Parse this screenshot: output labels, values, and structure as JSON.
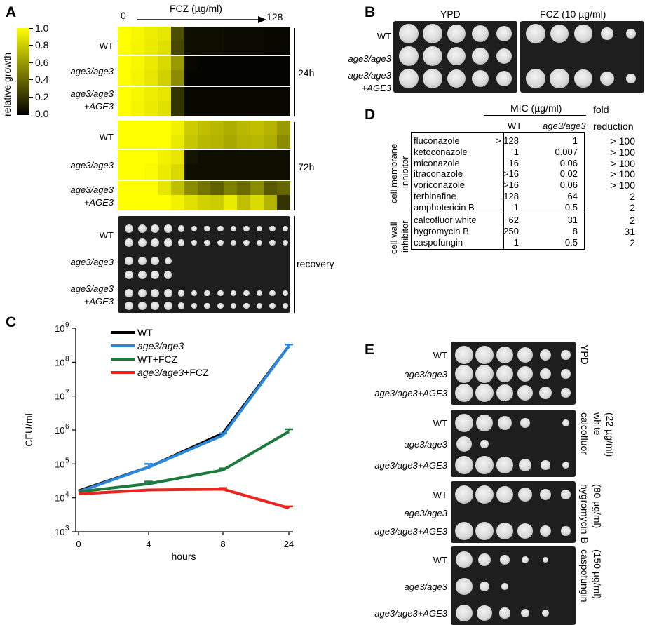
{
  "panels": {
    "A": "A",
    "B": "B",
    "C": "C",
    "D": "D",
    "E": "E"
  },
  "panelA": {
    "colorbar_label": "relative growth",
    "colorbar_ticks": [
      "1.0",
      "0.8",
      "0.6",
      "0.4",
      "0.2",
      "0.0"
    ],
    "fcz_label": "FCZ (µg/ml)",
    "fcz_min": "0",
    "fcz_max": "128",
    "time_24": "24h",
    "time_72": "72h",
    "recovery": "recovery",
    "strains": {
      "wt": "WT",
      "mut": "age3/age3",
      "comp1": "age3/age3",
      "comp2": "+AGE3"
    },
    "heatmap_24h": [
      [
        1.0,
        0.97,
        0.93,
        0.9,
        0.3,
        0.06,
        0.05,
        0.05,
        0.04,
        0.04,
        0.04,
        0.03,
        0.03
      ],
      [
        1.0,
        0.96,
        0.92,
        0.88,
        0.28,
        0.06,
        0.05,
        0.05,
        0.04,
        0.04,
        0.04,
        0.03,
        0.03
      ],
      [
        1.0,
        0.97,
        0.92,
        0.85,
        0.6,
        0.03,
        0.02,
        0.02,
        0.02,
        0.02,
        0.02,
        0.02,
        0.02
      ],
      [
        1.0,
        0.96,
        0.9,
        0.82,
        0.55,
        0.02,
        0.02,
        0.02,
        0.02,
        0.02,
        0.02,
        0.02,
        0.02
      ],
      [
        1.0,
        0.97,
        0.93,
        0.9,
        0.2,
        0.03,
        0.03,
        0.03,
        0.03,
        0.03,
        0.03,
        0.03,
        0.03
      ],
      [
        1.0,
        0.96,
        0.92,
        0.88,
        0.2,
        0.03,
        0.03,
        0.03,
        0.03,
        0.03,
        0.03,
        0.03,
        0.03
      ]
    ],
    "heatmap_72h": [
      [
        1.0,
        1.0,
        1.0,
        1.0,
        0.95,
        0.8,
        0.75,
        0.72,
        0.68,
        0.72,
        0.75,
        0.7,
        0.6
      ],
      [
        1.0,
        1.0,
        1.0,
        1.0,
        0.92,
        0.78,
        0.72,
        0.7,
        0.66,
        0.7,
        0.72,
        0.68,
        0.55
      ],
      [
        1.0,
        1.0,
        1.0,
        0.95,
        0.9,
        0.08,
        0.05,
        0.05,
        0.05,
        0.05,
        0.05,
        0.05,
        0.05
      ],
      [
        1.0,
        1.0,
        0.98,
        0.92,
        0.85,
        0.06,
        0.05,
        0.05,
        0.05,
        0.05,
        0.05,
        0.05,
        0.05
      ],
      [
        1.0,
        1.0,
        1.0,
        0.9,
        0.75,
        0.55,
        0.45,
        0.38,
        0.5,
        0.42,
        0.55,
        0.35,
        0.4
      ],
      [
        1.0,
        1.0,
        1.0,
        1.0,
        0.95,
        0.88,
        0.82,
        0.8,
        0.92,
        0.75,
        0.86,
        0.7,
        0.2
      ]
    ],
    "recovery_rows": [
      [
        1,
        1,
        1,
        1,
        0.6,
        0.55,
        0.55,
        0.55,
        0.5,
        0.5,
        0.5,
        0.5,
        0.45
      ],
      [
        1,
        1,
        1,
        1,
        0.6,
        0.55,
        0.55,
        0.55,
        0.5,
        0.5,
        0.5,
        0.5,
        0.45
      ],
      [
        1,
        1,
        1,
        0.8,
        0,
        0,
        0,
        0,
        0,
        0,
        0,
        0,
        0
      ],
      [
        1,
        1,
        1,
        0.9,
        0,
        0,
        0,
        0,
        0,
        0,
        0,
        0,
        0
      ],
      [
        1,
        1,
        1,
        1,
        0.6,
        0.55,
        0.55,
        0.55,
        0.5,
        0.5,
        0.5,
        0.5,
        0.45
      ],
      [
        1,
        1,
        1,
        1,
        0.6,
        0.55,
        0.55,
        0.55,
        0.5,
        0.5,
        0.5,
        0.5,
        0.45
      ]
    ]
  },
  "panelB": {
    "header_ypd": "YPD",
    "header_fcz": "FCZ (10 µg/ml)",
    "strains": {
      "wt": "WT",
      "mut": "age3/age3",
      "comp1": "age3/age3",
      "comp2": "+AGE3"
    },
    "ypd_rows": [
      [
        1,
        1,
        0.9,
        0.8,
        0.7
      ],
      [
        1,
        1,
        0.9,
        0.8,
        0.7
      ],
      [
        1,
        1,
        0.9,
        0.8,
        0.7
      ]
    ],
    "fcz_rows": [
      [
        1,
        0.9,
        0.85,
        0.5,
        0.2
      ],
      [
        0,
        0,
        0,
        0,
        0
      ],
      [
        1,
        0.95,
        0.85,
        0.6,
        0.25
      ]
    ]
  },
  "panelC": {
    "chart_data": {
      "type": "line",
      "xlabel": "hours",
      "ylabel": "CFU/ml",
      "x": [
        0,
        4,
        8,
        24
      ],
      "x_ticks": [
        "0",
        "4",
        "8",
        "24"
      ],
      "y_scale": "log",
      "ylim": [
        1000,
        1000000000
      ],
      "y_ticks": [
        {
          "base": "10",
          "exp": "3"
        },
        {
          "base": "10",
          "exp": "4"
        },
        {
          "base": "10",
          "exp": "5"
        },
        {
          "base": "10",
          "exp": "6"
        },
        {
          "base": "10",
          "exp": "7"
        },
        {
          "base": "10",
          "exp": "8"
        },
        {
          "base": "10",
          "exp": "9"
        }
      ],
      "legend_position": "top-left",
      "series": [
        {
          "name": "WT",
          "name_parts": [
            {
              "t": "WT",
              "i": false
            }
          ],
          "color": "#000000",
          "values": [
            16000,
            80000,
            800000,
            300000000
          ],
          "err": [
            0,
            0,
            0,
            0
          ]
        },
        {
          "name": "age3/age3",
          "name_parts": [
            {
              "t": "age3/age3",
              "i": true
            }
          ],
          "color": "#2b87d9",
          "values": [
            15000,
            80000,
            700000,
            300000000
          ],
          "err": [
            0,
            20000,
            100000,
            30000000
          ]
        },
        {
          "name": "WT+FCZ",
          "name_parts": [
            {
              "t": "WT+FCZ",
              "i": false
            }
          ],
          "color": "#1b7a3c",
          "values": [
            15000,
            26000,
            66000,
            900000
          ],
          "err": [
            0,
            4000,
            8000,
            150000
          ]
        },
        {
          "name": "age3/age3+FCZ",
          "name_parts": [
            {
              "t": "age3/age3",
              "i": true
            },
            {
              "t": "+FCZ",
              "i": false
            }
          ],
          "color": "#e8261f",
          "values": [
            13000,
            17000,
            18000,
            5000
          ],
          "err": [
            0,
            0,
            1500,
            600
          ]
        }
      ]
    }
  },
  "panelD": {
    "mic_header": "MIC (µg/ml)",
    "col_wt": "WT",
    "col_mut": "age3/age3",
    "fold_line1": "fold",
    "fold_line2": "reduction",
    "group1_line1": "cell membrane",
    "group1_line2": "inhibitor",
    "group2_line1": "cell wall",
    "group2_line2": "inhibitor",
    "membrane_rows": [
      {
        "drug": "fluconazole",
        "wt": "> 128",
        "mut": "1",
        "fold": "> 100"
      },
      {
        "drug": "ketoconazole",
        "wt": "1",
        "mut": "0.007",
        "fold": "> 100"
      },
      {
        "drug": "miconazole",
        "wt": "16",
        "mut": "0.06",
        "fold": "> 100"
      },
      {
        "drug": "itraconazole",
        "wt": ">16",
        "mut": "0.02",
        "fold": "> 100"
      },
      {
        "drug": "voriconazole",
        "wt": ">16",
        "mut": "0.06",
        "fold": "> 100"
      },
      {
        "drug": "terbinafine",
        "wt": "128",
        "mut": "64",
        "fold": "2"
      },
      {
        "drug": "amphotericin B",
        "wt": "1",
        "mut": "0.5",
        "fold": "2"
      }
    ],
    "wall_rows": [
      {
        "drug": "calcofluor white",
        "wt": "62",
        "mut": "31",
        "fold": "2"
      },
      {
        "drug": "hygromycin B",
        "wt": "250",
        "mut": "8",
        "fold": "31"
      },
      {
        "drug": "caspofungin",
        "wt": "1",
        "mut": "0.5",
        "fold": "2"
      }
    ]
  },
  "panelE": {
    "strain_wt": "WT",
    "strain_mut": "age3/age3",
    "strain_comp_a": "age3/age3",
    "strain_comp_b": "+AGE3",
    "conditions": [
      {
        "line1": "YPD",
        "line2": "",
        "spots": [
          [
            1,
            1,
            0.9,
            0.8,
            0.5,
            0.3
          ],
          [
            1,
            1,
            0.9,
            0.8,
            0.5,
            0.3
          ],
          [
            1,
            1,
            0.9,
            0.8,
            0.6,
            0.3
          ]
        ]
      },
      {
        "line1": "calcofluor",
        "line2": "white",
        "line3": "(22 µg/ml)",
        "spots": [
          [
            1,
            0.9,
            0.7,
            0.3,
            0,
            0.15
          ],
          [
            0.8,
            0.2,
            0,
            0,
            0,
            0
          ],
          [
            1,
            0.95,
            0.85,
            0.6,
            0.3,
            0.15
          ]
        ]
      },
      {
        "line1": "hygromycin B",
        "line2": "(80 µg/ml)",
        "spots": [
          [
            1,
            1,
            0.9,
            0.7,
            0.5,
            0.3
          ],
          [
            0,
            0,
            0,
            0,
            0,
            0
          ],
          [
            1,
            1,
            0.9,
            0.75,
            0.5,
            0.3
          ]
        ]
      },
      {
        "line1": "caspofungin",
        "line2": "(150 µg/ml)",
        "spots": [
          [
            0.9,
            0.6,
            0.3,
            0.15,
            0.05,
            0
          ],
          [
            0.85,
            0.35,
            0.1,
            0,
            0,
            0
          ],
          [
            0.9,
            0.75,
            0.4,
            0.25,
            0.1,
            0
          ]
        ]
      }
    ]
  }
}
